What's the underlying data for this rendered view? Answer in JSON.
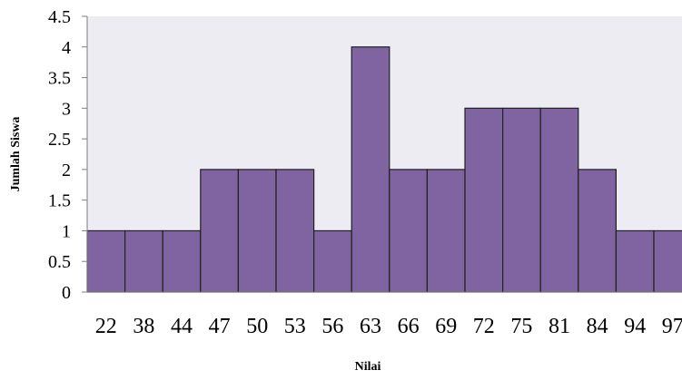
{
  "chart_data": {
    "type": "bar",
    "title": "",
    "xlabel": "Nilai",
    "ylabel": "Jumlah Siswa",
    "categories": [
      "22",
      "38",
      "44",
      "47",
      "50",
      "53",
      "56",
      "63",
      "66",
      "69",
      "72",
      "75",
      "81",
      "84",
      "94",
      "97"
    ],
    "values": [
      1,
      1,
      1,
      2,
      2,
      2,
      1,
      4,
      2,
      2,
      3,
      3,
      3,
      2,
      1,
      1
    ],
    "ylim": [
      0,
      4.5
    ],
    "yticks": [
      "0",
      "0.5",
      "1",
      "1.5",
      "2",
      "2.5",
      "3",
      "3.5",
      "4",
      "4.5"
    ],
    "grid": false,
    "legend": "none",
    "colors": {
      "bar_fill": "#8064A2",
      "bar_stroke": "#1F1F1F",
      "plot_bg": "#EEECF3",
      "axis": "#7F7F7F"
    }
  }
}
